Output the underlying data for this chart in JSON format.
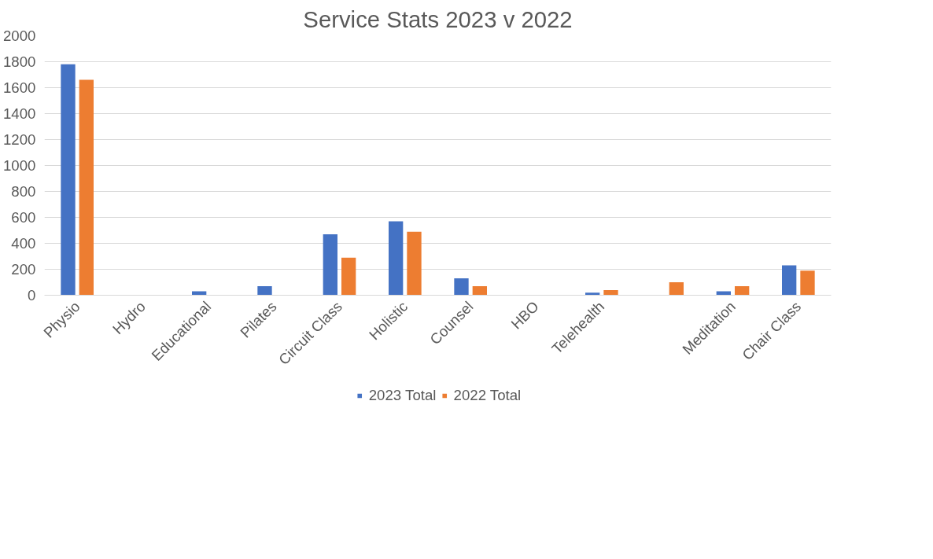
{
  "chart_data": {
    "type": "bar",
    "title": "Service Stats 2023 v 2022",
    "categories": [
      "Physio",
      "Hydro",
      "Educational",
      "Pilates",
      "Circuit Class",
      "Holistic",
      "Counsel",
      "HBO",
      "Telehealth",
      null,
      "Meditation",
      "Chair Class"
    ],
    "series": [
      {
        "name": "2023 Total",
        "color": "#4472c4",
        "values": [
          1780,
          0,
          30,
          70,
          470,
          570,
          130,
          0,
          20,
          0,
          30,
          230
        ]
      },
      {
        "name": "2022 Total",
        "color": "#ed7d31",
        "values": [
          1660,
          0,
          0,
          0,
          290,
          490,
          70,
          0,
          40,
          100,
          70,
          190
        ]
      }
    ],
    "ylim": [
      0,
      2000
    ],
    "yticks": [
      0,
      200,
      400,
      600,
      800,
      1000,
      1200,
      1400,
      1600,
      1800,
      2000
    ],
    "grid": "y",
    "legend": "bottom"
  }
}
